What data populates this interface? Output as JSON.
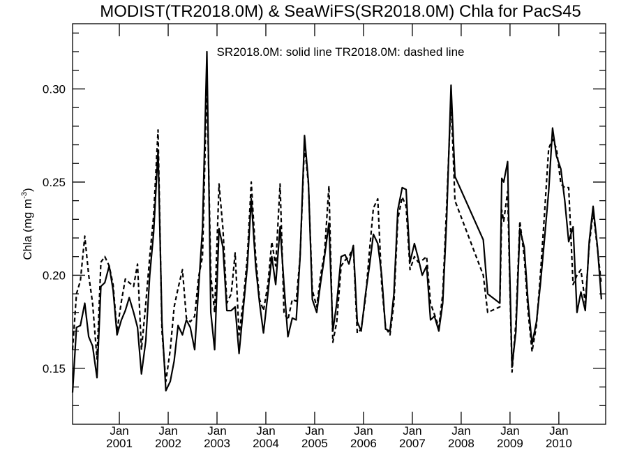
{
  "chart_data": {
    "type": "line",
    "title": "MODIST(TR2018.0M) & SeaWiFS(SR2018.0M)  Chla for PacS45",
    "legend_text": "SR2018.0M: solid line   TR2018.0M: dashed line",
    "ylabel_main": "Chla (mg m",
    "ylabel_sup": "-3",
    "ylabel_close": ")",
    "xlim": [
      2000.0,
      2010.917
    ],
    "ylim": [
      0.12,
      0.335
    ],
    "y_ticks": [
      {
        "value": 0.15,
        "label": "0.15"
      },
      {
        "value": 0.2,
        "label": "0.20"
      },
      {
        "value": 0.25,
        "label": "0.25"
      },
      {
        "value": 0.3,
        "label": "0.30"
      }
    ],
    "x_ticks": [
      {
        "value": 2000.958,
        "month": "Jan",
        "year": "2001"
      },
      {
        "value": 2001.958,
        "month": "Jan",
        "year": "2002"
      },
      {
        "value": 2002.958,
        "month": "Jan",
        "year": "2003"
      },
      {
        "value": 2003.958,
        "month": "Jan",
        "year": "2004"
      },
      {
        "value": 2004.958,
        "month": "Jan",
        "year": "2005"
      },
      {
        "value": 2005.958,
        "month": "Jan",
        "year": "2006"
      },
      {
        "value": 2006.958,
        "month": "Jan",
        "year": "2007"
      },
      {
        "value": 2007.958,
        "month": "Jan",
        "year": "2008"
      },
      {
        "value": 2008.958,
        "month": "Jan",
        "year": "2009"
      },
      {
        "value": 2009.958,
        "month": "Jan",
        "year": "2010"
      }
    ],
    "series": [
      {
        "style": "solid",
        "points": [
          [
            2000.0,
            0.137
          ],
          [
            2000.08,
            0.172
          ],
          [
            2000.16,
            0.173
          ],
          [
            2000.25,
            0.185
          ],
          [
            2000.33,
            0.167
          ],
          [
            2000.41,
            0.162
          ],
          [
            2000.5,
            0.145
          ],
          [
            2000.58,
            0.194
          ],
          [
            2000.66,
            0.196
          ],
          [
            2000.75,
            0.205
          ],
          [
            2000.83,
            0.192
          ],
          [
            2000.91,
            0.168
          ],
          [
            2001.0,
            0.176
          ],
          [
            2001.08,
            0.181
          ],
          [
            2001.16,
            0.188
          ],
          [
            2001.25,
            0.18
          ],
          [
            2001.33,
            0.172
          ],
          [
            2001.41,
            0.147
          ],
          [
            2001.5,
            0.165
          ],
          [
            2001.58,
            0.2
          ],
          [
            2001.66,
            0.223
          ],
          [
            2001.75,
            0.267
          ],
          [
            2001.83,
            0.175
          ],
          [
            2001.91,
            0.138
          ],
          [
            2002.0,
            0.143
          ],
          [
            2002.08,
            0.154
          ],
          [
            2002.16,
            0.173
          ],
          [
            2002.25,
            0.168
          ],
          [
            2002.33,
            0.176
          ],
          [
            2002.41,
            0.172
          ],
          [
            2002.5,
            0.16
          ],
          [
            2002.58,
            0.193
          ],
          [
            2002.66,
            0.225
          ],
          [
            2002.75,
            0.32
          ],
          [
            2002.83,
            0.18
          ],
          [
            2002.91,
            0.16
          ],
          [
            2003.0,
            0.225
          ],
          [
            2003.08,
            0.215
          ],
          [
            2003.16,
            0.181
          ],
          [
            2003.25,
            0.181
          ],
          [
            2003.33,
            0.183
          ],
          [
            2003.41,
            0.158
          ],
          [
            2003.5,
            0.183
          ],
          [
            2003.58,
            0.205
          ],
          [
            2003.66,
            0.241
          ],
          [
            2003.75,
            0.205
          ],
          [
            2003.83,
            0.185
          ],
          [
            2003.91,
            0.169
          ],
          [
            2004.0,
            0.19
          ],
          [
            2004.08,
            0.21
          ],
          [
            2004.16,
            0.195
          ],
          [
            2004.25,
            0.226
          ],
          [
            2004.33,
            0.195
          ],
          [
            2004.41,
            0.167
          ],
          [
            2004.5,
            0.177
          ],
          [
            2004.58,
            0.176
          ],
          [
            2004.66,
            0.21
          ],
          [
            2004.75,
            0.275
          ],
          [
            2004.83,
            0.25
          ],
          [
            2004.91,
            0.187
          ],
          [
            2005.0,
            0.18
          ],
          [
            2005.08,
            0.196
          ],
          [
            2005.16,
            0.21
          ],
          [
            2005.25,
            0.228
          ],
          [
            2005.33,
            0.17
          ],
          [
            2005.41,
            0.185
          ],
          [
            2005.5,
            0.21
          ],
          [
            2005.58,
            0.211
          ],
          [
            2005.66,
            0.206
          ],
          [
            2005.75,
            0.216
          ],
          [
            2005.83,
            0.175
          ],
          [
            2005.91,
            0.17
          ],
          [
            2006.0,
            0.19
          ],
          [
            2006.08,
            0.205
          ],
          [
            2006.16,
            0.222
          ],
          [
            2006.25,
            0.217
          ],
          [
            2006.33,
            0.2
          ],
          [
            2006.41,
            0.171
          ],
          [
            2006.5,
            0.17
          ],
          [
            2006.58,
            0.19
          ],
          [
            2006.66,
            0.235
          ],
          [
            2006.75,
            0.247
          ],
          [
            2006.83,
            0.246
          ],
          [
            2006.91,
            0.207
          ],
          [
            2007.0,
            0.217
          ],
          [
            2007.08,
            0.209
          ],
          [
            2007.16,
            0.2
          ],
          [
            2007.25,
            0.205
          ],
          [
            2007.33,
            0.176
          ],
          [
            2007.41,
            0.178
          ],
          [
            2007.5,
            0.17
          ],
          [
            2007.58,
            0.185
          ],
          [
            2007.66,
            0.23
          ],
          [
            2007.75,
            0.302
          ],
          [
            2007.83,
            0.253
          ],
          [
            2008.41,
            0.219
          ],
          [
            2008.5,
            0.19
          ],
          [
            2008.75,
            0.185
          ],
          [
            2008.79,
            0.252
          ],
          [
            2008.83,
            0.25
          ],
          [
            2008.91,
            0.261
          ],
          [
            2008.95,
            0.205
          ],
          [
            2009.0,
            0.151
          ],
          [
            2009.08,
            0.17
          ],
          [
            2009.16,
            0.225
          ],
          [
            2009.25,
            0.215
          ],
          [
            2009.33,
            0.185
          ],
          [
            2009.41,
            0.163
          ],
          [
            2009.5,
            0.175
          ],
          [
            2009.58,
            0.195
          ],
          [
            2009.66,
            0.218
          ],
          [
            2009.75,
            0.245
          ],
          [
            2009.83,
            0.279
          ],
          [
            2009.91,
            0.264
          ],
          [
            2010.0,
            0.257
          ],
          [
            2010.08,
            0.24
          ],
          [
            2010.16,
            0.218
          ],
          [
            2010.25,
            0.226
          ],
          [
            2010.33,
            0.18
          ],
          [
            2010.41,
            0.191
          ],
          [
            2010.5,
            0.181
          ],
          [
            2010.58,
            0.218
          ],
          [
            2010.66,
            0.237
          ],
          [
            2010.75,
            0.215
          ],
          [
            2010.83,
            0.187
          ]
        ]
      },
      {
        "style": "dashed",
        "points": [
          [
            2000.0,
            0.16
          ],
          [
            2000.08,
            0.19
          ],
          [
            2000.16,
            0.197
          ],
          [
            2000.25,
            0.221
          ],
          [
            2000.33,
            0.2
          ],
          [
            2000.41,
            0.185
          ],
          [
            2000.5,
            0.155
          ],
          [
            2000.58,
            0.207
          ],
          [
            2000.66,
            0.21
          ],
          [
            2000.75,
            0.205
          ],
          [
            2000.83,
            0.195
          ],
          [
            2000.91,
            0.17
          ],
          [
            2001.0,
            0.186
          ],
          [
            2001.08,
            0.198
          ],
          [
            2001.16,
            0.196
          ],
          [
            2001.25,
            0.194
          ],
          [
            2001.33,
            0.206
          ],
          [
            2001.41,
            0.16
          ],
          [
            2001.5,
            0.185
          ],
          [
            2001.58,
            0.21
          ],
          [
            2001.66,
            0.232
          ],
          [
            2001.75,
            0.278
          ],
          [
            2001.83,
            0.17
          ],
          [
            2001.91,
            0.143
          ],
          [
            2002.0,
            0.16
          ],
          [
            2002.08,
            0.183
          ],
          [
            2002.16,
            0.193
          ],
          [
            2002.25,
            0.203
          ],
          [
            2002.33,
            0.177
          ],
          [
            2002.41,
            0.175
          ],
          [
            2002.5,
            0.178
          ],
          [
            2002.58,
            0.199
          ],
          [
            2002.66,
            0.21
          ],
          [
            2002.75,
            0.305
          ],
          [
            2002.83,
            0.2
          ],
          [
            2002.91,
            0.18
          ],
          [
            2003.0,
            0.249
          ],
          [
            2003.08,
            0.225
          ],
          [
            2003.16,
            0.185
          ],
          [
            2003.25,
            0.19
          ],
          [
            2003.33,
            0.212
          ],
          [
            2003.41,
            0.168
          ],
          [
            2003.5,
            0.187
          ],
          [
            2003.58,
            0.21
          ],
          [
            2003.66,
            0.25
          ],
          [
            2003.75,
            0.21
          ],
          [
            2003.83,
            0.187
          ],
          [
            2003.91,
            0.181
          ],
          [
            2004.0,
            0.195
          ],
          [
            2004.08,
            0.218
          ],
          [
            2004.16,
            0.205
          ],
          [
            2004.25,
            0.249
          ],
          [
            2004.33,
            0.18
          ],
          [
            2004.41,
            0.176
          ],
          [
            2004.5,
            0.187
          ],
          [
            2004.58,
            0.186
          ],
          [
            2004.66,
            0.21
          ],
          [
            2004.75,
            0.27
          ],
          [
            2004.83,
            0.249
          ],
          [
            2004.91,
            0.192
          ],
          [
            2005.0,
            0.183
          ],
          [
            2005.08,
            0.2
          ],
          [
            2005.16,
            0.212
          ],
          [
            2005.25,
            0.248
          ],
          [
            2005.33,
            0.164
          ],
          [
            2005.41,
            0.175
          ],
          [
            2005.5,
            0.205
          ],
          [
            2005.58,
            0.208
          ],
          [
            2005.66,
            0.21
          ],
          [
            2005.75,
            0.215
          ],
          [
            2005.83,
            0.169
          ],
          [
            2005.91,
            0.171
          ],
          [
            2006.0,
            0.188
          ],
          [
            2006.08,
            0.213
          ],
          [
            2006.16,
            0.236
          ],
          [
            2006.25,
            0.241
          ],
          [
            2006.33,
            0.195
          ],
          [
            2006.41,
            0.172
          ],
          [
            2006.5,
            0.168
          ],
          [
            2006.58,
            0.185
          ],
          [
            2006.66,
            0.23
          ],
          [
            2006.75,
            0.242
          ],
          [
            2006.83,
            0.237
          ],
          [
            2006.91,
            0.203
          ],
          [
            2007.0,
            0.21
          ],
          [
            2007.08,
            0.207
          ],
          [
            2007.16,
            0.208
          ],
          [
            2007.25,
            0.21
          ],
          [
            2007.33,
            0.185
          ],
          [
            2007.41,
            0.179
          ],
          [
            2007.5,
            0.172
          ],
          [
            2007.58,
            0.19
          ],
          [
            2007.66,
            0.237
          ],
          [
            2007.75,
            0.295
          ],
          [
            2007.83,
            0.24
          ],
          [
            2008.41,
            0.2
          ],
          [
            2008.5,
            0.18
          ],
          [
            2008.75,
            0.183
          ],
          [
            2008.79,
            0.235
          ],
          [
            2008.83,
            0.229
          ],
          [
            2008.91,
            0.245
          ],
          [
            2008.95,
            0.2
          ],
          [
            2009.0,
            0.148
          ],
          [
            2009.08,
            0.175
          ],
          [
            2009.16,
            0.229
          ],
          [
            2009.25,
            0.21
          ],
          [
            2009.33,
            0.18
          ],
          [
            2009.41,
            0.159
          ],
          [
            2009.5,
            0.173
          ],
          [
            2009.58,
            0.2
          ],
          [
            2009.66,
            0.231
          ],
          [
            2009.75,
            0.268
          ],
          [
            2009.83,
            0.273
          ],
          [
            2009.91,
            0.268
          ],
          [
            2010.0,
            0.249
          ],
          [
            2010.08,
            0.247
          ],
          [
            2010.16,
            0.247
          ],
          [
            2010.25,
            0.195
          ],
          [
            2010.33,
            0.2
          ],
          [
            2010.41,
            0.203
          ],
          [
            2010.5,
            0.185
          ],
          [
            2010.58,
            0.216
          ],
          [
            2010.66,
            0.234
          ],
          [
            2010.75,
            0.214
          ],
          [
            2010.83,
            0.195
          ]
        ]
      }
    ]
  }
}
